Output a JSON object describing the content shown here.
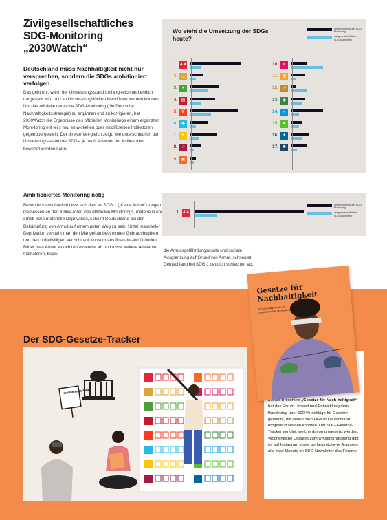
{
  "article": {
    "title": "Zivilgesellschaftliches SDG-Monitoring „2030Watch“",
    "lead": "Deutschland muss Nachhaltigkeit nicht nur versprechen, sondern die SDGs ambitioniert verfolgen.",
    "body_1": "Das geht nur, wenn der Umsetzungsstand umfang-reich und ehrlich dargestellt wird und so Umset-zungslücken identifiziert werden können. Um das offizielle deutsche SDG-Monitoring (die Deutsche Nachhaltigkeitsstrategie) zu ergänzen und zu korrigieren, hat 2030Watch die Ergebnisse des offiziellen Monitorings einem ergänzten Moni-toring mit teils neu entwickelten oder modifizierten Indikatoren gegenübergestellt. Der direkte Ver-gleich zeigt, wie unterschiedlich der Umsetzungs-stand der SDGs, je nach Auswahl der Indikatoren, bewertet werden kann.",
    "subheading": "Ambitioniertes Monitoring nötig",
    "body_2": "Besonders anschaulich lässt sich dies an SDG 1 („Keine Armut“) zeigen. Gemessen an den Indika-toren des offiziellen Monitorings, materielle und erheb-liche materielle Deprivation, scheint Deutschland bei der Bekämpfung von Armut auf einem guten Weg zu sein. Unter materieller Deprivation versteht man den Mangel an bestimmten Gebrauchsgütern und den unfreiwilligen Verzicht auf Konsum aus finanziel-len Gründen. Bildet man Armut jedoch umfassender ab und misst weitere relevante Indikatoren, bspw.",
    "body_3": "die Armutsgefährdungsquote und soziale Ausgrenzung auf Grund von Armut, schneidet Deutschland bei SDG 1 deutlich schlechter ab."
  },
  "chart_data": [
    {
      "type": "bar",
      "title": "Wo steht die Umsetzung der SDGs heute?",
      "orientation": "horizontal",
      "categories": [
        "1.",
        "2.",
        "3.",
        "4.",
        "5.",
        "6.",
        "7.",
        "8.",
        "9.",
        "10.",
        "11.",
        "12.",
        "13.",
        "14.",
        "15.",
        "16.",
        "17."
      ],
      "series": [
        {
          "name": "offizieller deutscher SDG-Monitoring",
          "color": "#101020",
          "values": [
            0.95,
            0.25,
            0.55,
            0.48,
            0.9,
            0.35,
            0.5,
            0.2,
            0.12,
            0.3,
            0.25,
            0.1,
            0.25,
            0.6,
            0.22,
            0.35,
            0.3
          ]
        },
        {
          "name": "zivilgesellschaftliches SDG-Monitoring",
          "color": "#68bfe0",
          "values": [
            0.2,
            0.12,
            0.35,
            0.2,
            0.4,
            0.12,
            0.18,
            0.08,
            0.08,
            0.6,
            0.1,
            0.3,
            0.2,
            0.15,
            0.15,
            0.2,
            0.12
          ]
        }
      ],
      "icon_colors": [
        "#e5243b",
        "#dda63a",
        "#4c9f38",
        "#c5192d",
        "#ff3a21",
        "#26bde2",
        "#fcc30b",
        "#a21942",
        "#fd6925",
        "#dd1367",
        "#fd9d24",
        "#bf8b2e",
        "#3f7e44",
        "#0a97d9",
        "#56c02b",
        "#00689d",
        "#19486a"
      ],
      "icons": [
        "people-icon",
        "bowl-icon",
        "heartbeat-icon",
        "book-icon",
        "gender-icon",
        "water-drop-icon",
        "sun-icon",
        "growth-chart-icon",
        "cubes-icon",
        "equality-icon",
        "buildings-icon",
        "infinity-icon",
        "eye-globe-icon",
        "fish-icon",
        "tree-icon",
        "dove-icon",
        "rings-icon"
      ]
    },
    {
      "type": "bar",
      "orientation": "horizontal",
      "categories": [
        "1."
      ],
      "series": [
        {
          "name": "offizieller deutscher SDG-Monitoring",
          "color": "#101020",
          "values": [
            0.95
          ]
        },
        {
          "name": "zivilgesellschaftliches SDG-Monitoring",
          "color": "#68bfe0",
          "values": [
            0.2
          ]
        }
      ]
    }
  ],
  "legend": {
    "official": "offizieller deutscher SDG-Monitoring",
    "civil": "zivilgesellschaftliches SDG-Monitoring"
  },
  "tracker": {
    "title": "Der SDG-Gesetze-Tracker",
    "illustration_sign": "Koalitions-vertrag",
    "brochure_title": "Gesetze für Nachhaltigkeit",
    "brochure_sub": "100 Vorschläge für die 20. Legislaturperiode des Bundestags",
    "info_prefix": "Mit der Broschüre ",
    "info_bold": "„Gesetze für Nach-haltigkeit“",
    "info_suffix": " hat das Forum Umwelt und Entwicklung dem Bundestag über 100 Vorschläge für Gesetze gemacht, mit denen die SDGs in Deutschland umgesetzt werden könnten. Der SDG-Gesetze-Tracker verfolgt, welche davon umgesetzt werden. Wöchentliche Updates zum Umsetzungsstand gibt es auf Instagram sowie umfangreiche-re Analysen alle zwei Monate im SDG-Newsletter des Forums."
  },
  "colors": {
    "accent_orange": "#f58b4b",
    "panel_bg": "#e6e2dd",
    "bar_official": "#101020",
    "bar_civil": "#68bfe0"
  }
}
